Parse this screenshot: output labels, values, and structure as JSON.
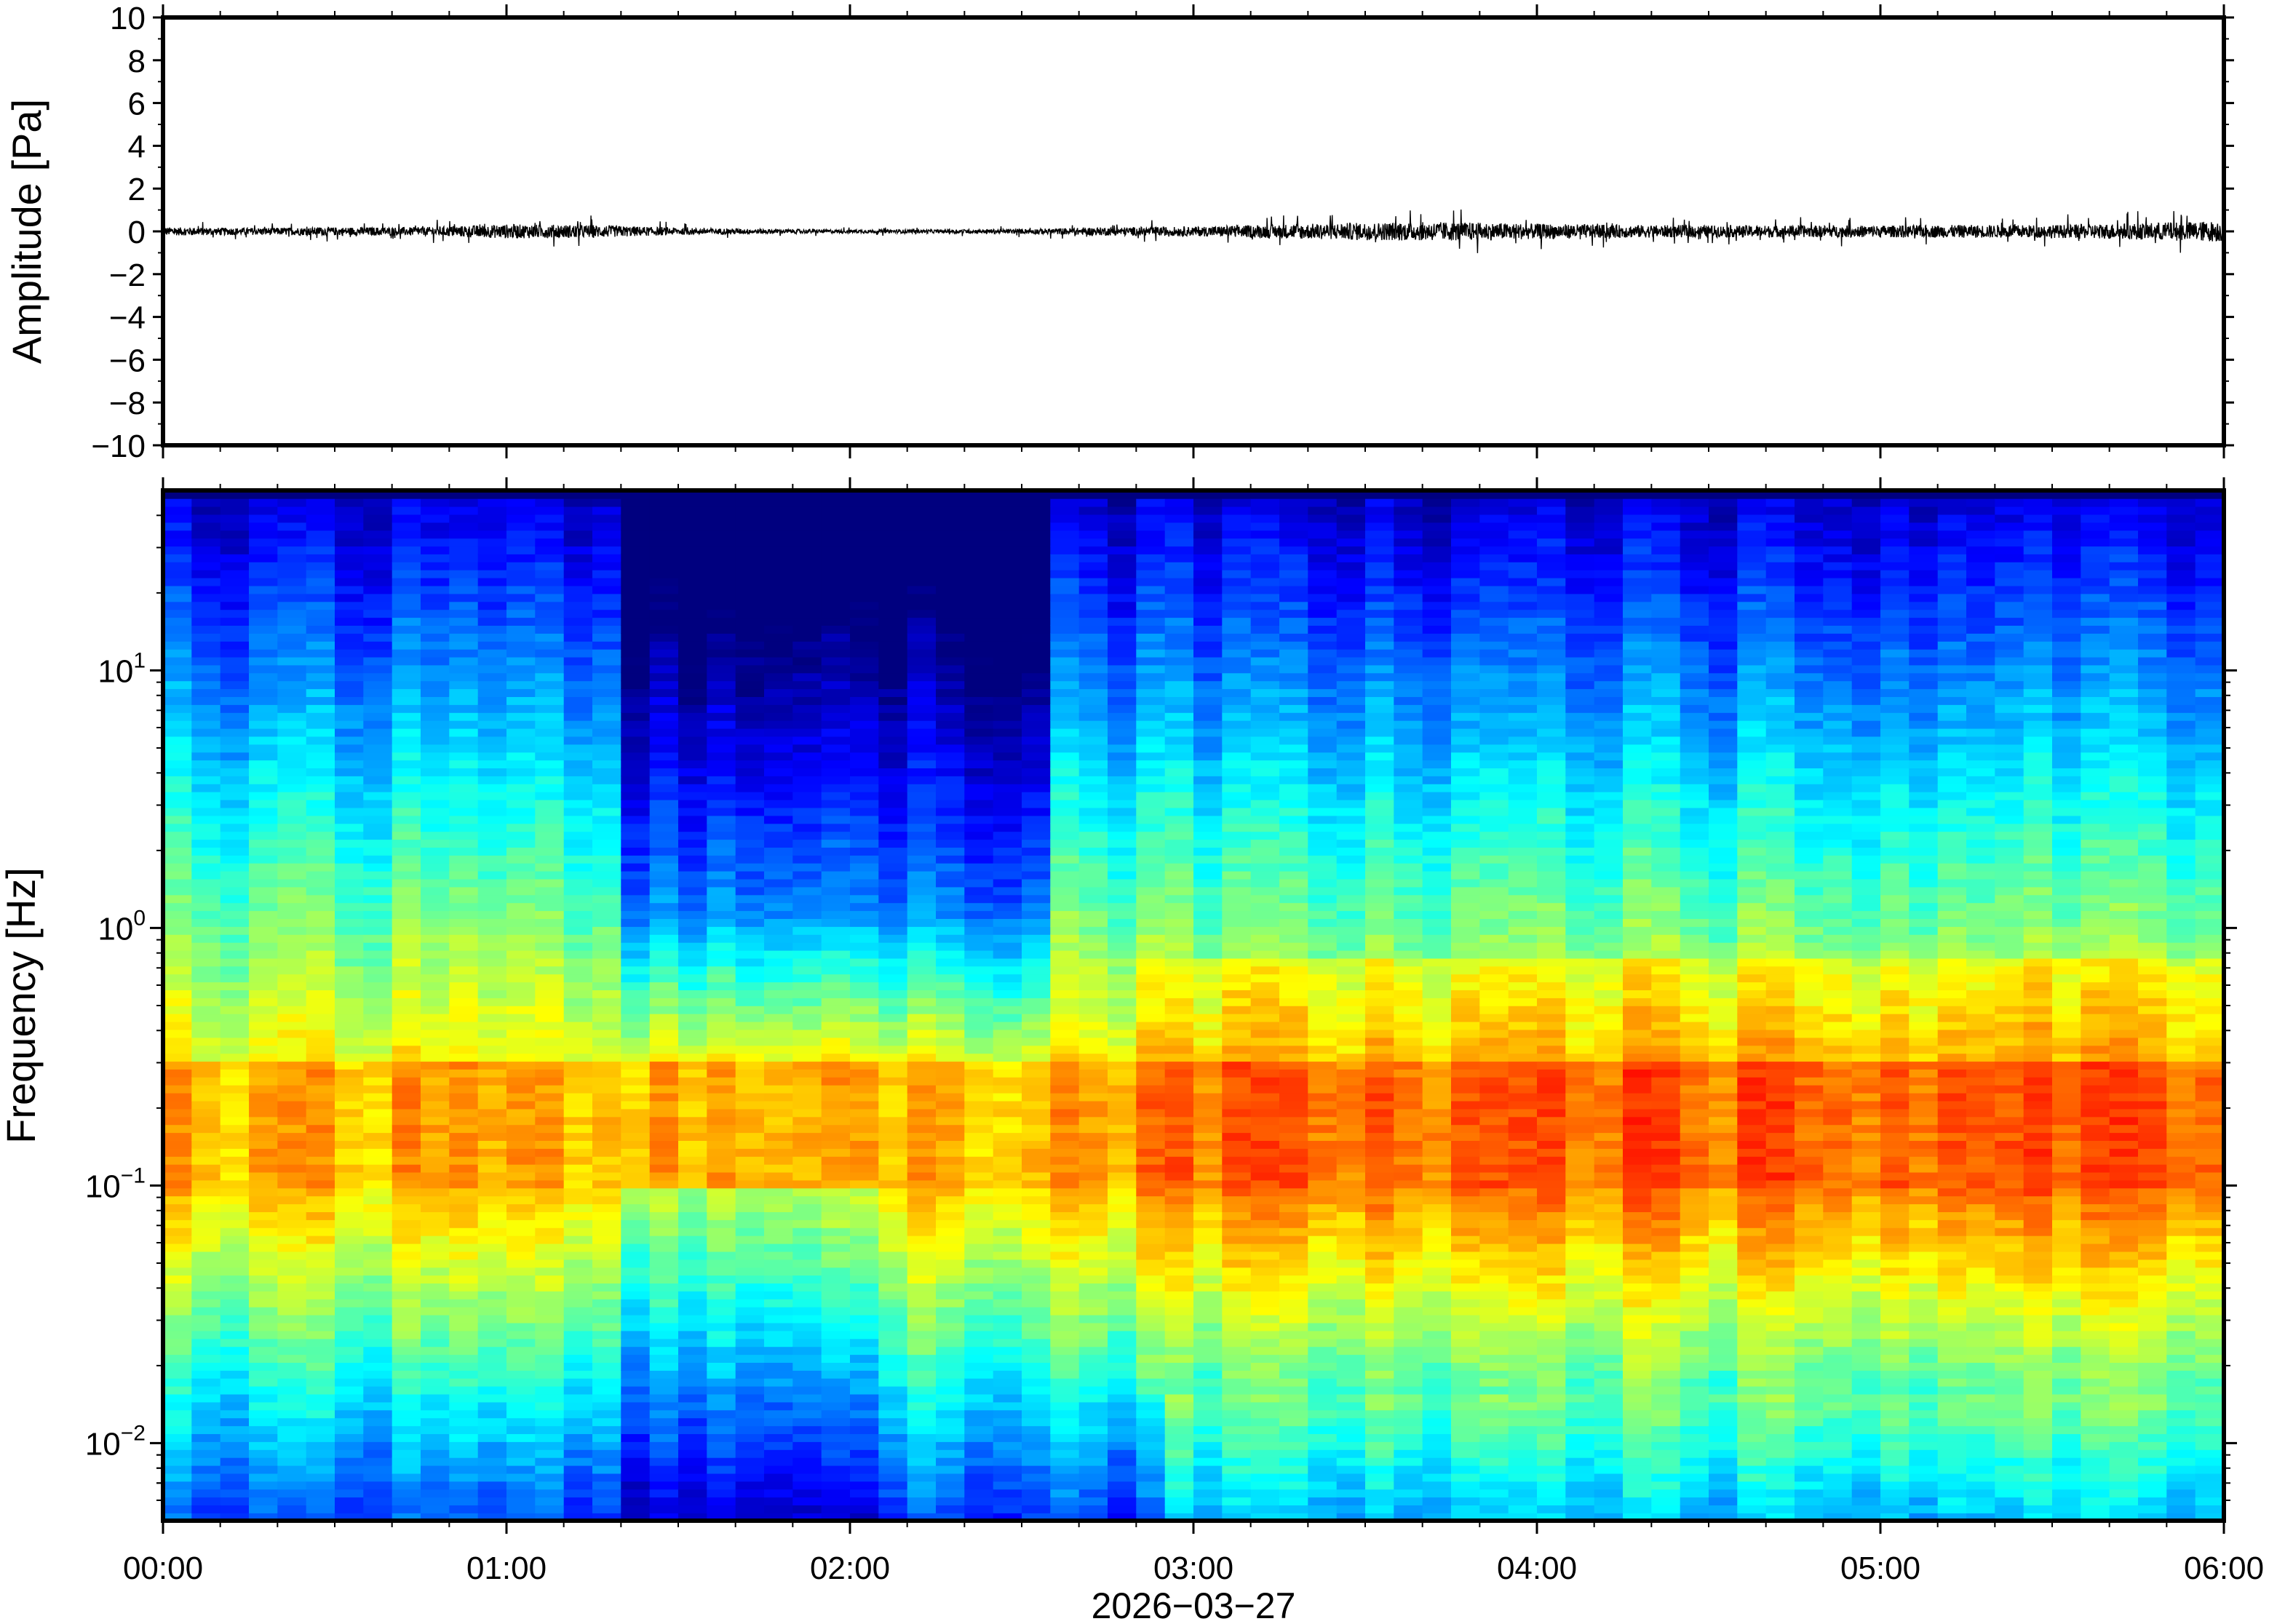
{
  "chart_data": [
    {
      "type": "line",
      "panel": "waveform",
      "ylabel": "Amplitude [Pa]",
      "ylim": [
        -10,
        10
      ],
      "y_ticks": [
        10,
        8,
        6,
        4,
        2,
        0,
        -2,
        -4,
        -6,
        -8,
        -10
      ],
      "y_tick_labels": [
        "10",
        "8",
        "6",
        "4",
        "2",
        "0",
        "−2",
        "−4",
        "−6",
        "−8",
        "−10"
      ],
      "x_range_hours": [
        0,
        6
      ],
      "series": [
        {
          "sample_interval_minutes": 15,
          "envelope_peak_pa": [
            0.35,
            0.3,
            0.35,
            0.35,
            0.6,
            0.55,
            0.3,
            0.2,
            0.15,
            0.15,
            0.2,
            0.35,
            0.4,
            0.6,
            0.75,
            0.8,
            0.65,
            0.55,
            0.5,
            0.5,
            0.5,
            0.55,
            0.55,
            0.7,
            0.9
          ]
        }
      ]
    },
    {
      "type": "heatmap",
      "panel": "spectrogram",
      "ylabel": "Frequency [Hz]",
      "xlabel": "2026−03−27",
      "y_scale": "log",
      "ylim_hz": [
        0.005,
        50
      ],
      "y_ticks": [
        {
          "base": "10",
          "exp": "1",
          "value": 10
        },
        {
          "base": "10",
          "exp": "0",
          "value": 1
        },
        {
          "base": "10",
          "exp": "−1",
          "value": 0.1
        },
        {
          "base": "10",
          "exp": "−2",
          "value": 0.01
        }
      ],
      "x_ticks": [
        "00:00",
        "01:00",
        "02:00",
        "03:00",
        "04:00",
        "05:00",
        "06:00"
      ],
      "x_range_hours": [
        0,
        6
      ],
      "colormap": "jet",
      "colors": [
        "#00007f",
        "#0000ff",
        "#0080ff",
        "#00ffff",
        "#80ff80",
        "#ffff00",
        "#ff8000",
        "#ff0000",
        "#7f0000"
      ],
      "summary": {
        "microseism_band_hz": [
          0.1,
          0.3
        ],
        "quiet_interval_hours": [
          1.3,
          2.6
        ]
      }
    }
  ]
}
